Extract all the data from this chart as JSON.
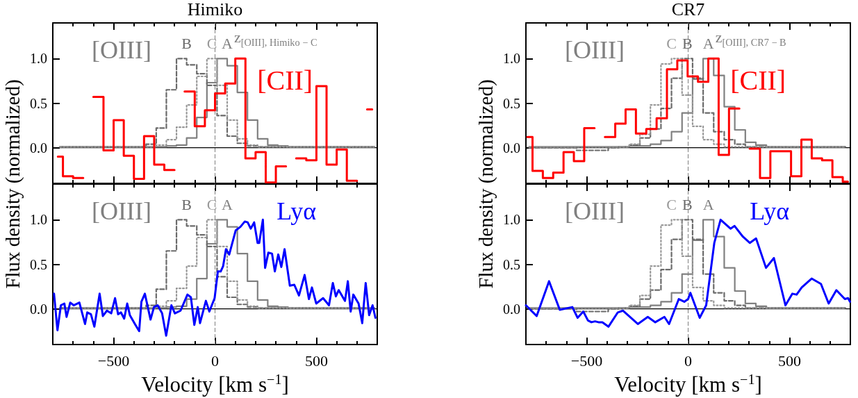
{
  "chart_data": [
    {
      "type": "step",
      "title": "Himiko",
      "ylabel": "Flux density (normalized)",
      "xlim": [
        -800,
        800
      ],
      "ylim": [
        -0.4,
        1.4
      ],
      "xticks": [
        {
          "value": -700,
          "label": null
        },
        {
          "value": -600,
          "label": null
        },
        -500,
        {
          "value": -400,
          "label": null
        },
        {
          "value": -300,
          "label": null
        },
        {
          "value": -200,
          "label": null
        },
        {
          "value": -100,
          "label": null
        },
        0,
        {
          "value": 100,
          "label": null
        },
        {
          "value": 200,
          "label": null
        },
        {
          "value": 300,
          "label": null
        },
        {
          "value": 400,
          "label": null
        },
        500,
        {
          "value": 600,
          "label": null
        },
        {
          "value": 700,
          "label": null
        }
      ],
      "yticks": [
        {
          "value": 0,
          "label": "0.0"
        },
        {
          "value": 0.5,
          "label": "0.5"
        },
        {
          "value": 1,
          "label": "1.0"
        }
      ],
      "tick_labels": "y",
      "grid": false,
      "legend": false,
      "marker": "none",
      "annotations": [
        "[OIII]",
        "z$_{[OIII], Himiko − C}$"
      ],
      "ref_lines": [
        {
          "axis": "x",
          "value": 0,
          "color": "#808080",
          "line_style": "dashed"
        },
        {
          "axis": "y",
          "value": 0,
          "color": "#000000",
          "line_style": "solid"
        }
      ],
      "series": [
        {
          "name": "A",
          "color": "#808080",
          "line_style": "solid",
          "x": [
            -765,
            -715,
            -665,
            -615,
            -565,
            -515,
            -465,
            -415,
            -365,
            -315,
            -265,
            -215,
            -165,
            -115,
            -65,
            -15,
            35,
            85,
            135,
            185,
            235,
            285,
            335,
            385,
            435,
            485,
            535,
            585,
            635,
            685,
            735,
            785
          ],
          "values": [
            0.01,
            0.01,
            0.01,
            0.01,
            0.01,
            0.01,
            0.01,
            0.01,
            0.01,
            0.01,
            0.01,
            0.02,
            0.03,
            0.11,
            0.34,
            0.73,
            1.0,
            0.92,
            0.62,
            0.31,
            0.1,
            0.03,
            0.02,
            0.01,
            0.01,
            0.01,
            0.01,
            0.01,
            0.01,
            0.01,
            0.01,
            0.01
          ]
        },
        {
          "name": "B",
          "color": "#6b6b6b",
          "line_style": "dashed",
          "x": [
            -765,
            -715,
            -665,
            -615,
            -565,
            -515,
            -465,
            -415,
            -365,
            -315,
            -265,
            -215,
            -165,
            -115,
            -65,
            -15,
            35,
            85,
            135,
            185,
            235,
            285,
            335,
            385,
            435,
            485,
            535,
            585,
            635,
            685,
            735,
            785
          ],
          "values": [
            0.01,
            0.01,
            0.01,
            0.01,
            0.01,
            0.01,
            0.01,
            0.01,
            0.01,
            0.04,
            0.22,
            0.65,
            1.0,
            0.93,
            0.83,
            0.7,
            0.36,
            0.13,
            0.05,
            0.02,
            0.01,
            0.01,
            0.01,
            0.01,
            0.01,
            0.01,
            0.01,
            0.01,
            0.01,
            0.01,
            0.01,
            0.01
          ]
        },
        {
          "name": "C",
          "color": "#999999",
          "line_style": "dotted",
          "x": [
            -765,
            -715,
            -665,
            -615,
            -565,
            -515,
            -465,
            -415,
            -365,
            -315,
            -265,
            -215,
            -165,
            -115,
            -65,
            -15,
            35,
            85,
            135,
            185,
            235,
            285,
            335,
            385,
            435,
            485,
            535,
            585,
            635,
            685,
            735,
            785
          ],
          "values": [
            0.01,
            0.01,
            0.01,
            0.01,
            0.01,
            0.01,
            0.01,
            0.01,
            0.01,
            0.01,
            0.03,
            0.09,
            0.23,
            0.48,
            0.8,
            1.0,
            0.7,
            0.31,
            0.1,
            0.03,
            0.01,
            0.01,
            0.01,
            0.01,
            0.01,
            0.01,
            0.01,
            0.01,
            0.01,
            0.01,
            0.01,
            0.01
          ]
        },
        {
          "name": "[CII]",
          "color": "#ff0000",
          "line_style": "solid",
          "x": [
            -775,
            -725,
            -675,
            -625,
            -575,
            -525,
            -475,
            -425,
            -375,
            -325,
            -275,
            -225,
            -175,
            -125,
            -75,
            -25,
            25,
            75,
            125,
            175,
            225,
            275,
            325,
            375,
            425,
            475,
            525,
            575,
            625,
            675,
            725,
            775
          ],
          "values": [
            -0.1,
            -0.32,
            -0.34,
            null,
            0.57,
            -0.03,
            0.31,
            -0.09,
            -0.35,
            0.13,
            -0.19,
            -0.25,
            null,
            0.63,
            0.24,
            0.42,
            0.61,
            0.72,
            1.0,
            -0.12,
            -0.05,
            -0.39,
            -0.21,
            null,
            -0.12,
            -0.14,
            0.69,
            -0.19,
            -0.02,
            -0.37,
            null,
            0.43
          ]
        }
      ]
    },
    {
      "type": "step",
      "title": "CR7",
      "ylabel": "Flux density (normalized)",
      "xlim": [
        -800,
        800
      ],
      "ylim": [
        -0.4,
        1.4
      ],
      "xticks": [
        {
          "value": -700,
          "label": null
        },
        {
          "value": -600,
          "label": null
        },
        -500,
        {
          "value": -400,
          "label": null
        },
        {
          "value": -300,
          "label": null
        },
        {
          "value": -200,
          "label": null
        },
        {
          "value": -100,
          "label": null
        },
        0,
        {
          "value": 100,
          "label": null
        },
        {
          "value": 200,
          "label": null
        },
        {
          "value": 300,
          "label": null
        },
        {
          "value": 400,
          "label": null
        },
        500,
        {
          "value": 600,
          "label": null
        },
        {
          "value": 700,
          "label": null
        }
      ],
      "yticks": [
        {
          "value": 0,
          "label": "0.0"
        },
        {
          "value": 0.5,
          "label": "0.5"
        },
        {
          "value": 1,
          "label": "1.0"
        }
      ],
      "tick_labels": "y",
      "grid": false,
      "legend": false,
      "marker": "none",
      "annotations": [
        "[OIII]",
        "z$_{[OIII], CR7 − B}$"
      ],
      "ref_lines": [
        {
          "axis": "x",
          "value": 0,
          "color": "#808080",
          "line_style": "dashed"
        },
        {
          "axis": "y",
          "value": 0,
          "color": "#000000",
          "line_style": "solid"
        }
      ],
      "series": [
        {
          "name": "A",
          "color": "#808080",
          "line_style": "solid",
          "x": [
            -784,
            -732,
            -680,
            -628,
            -576,
            -524,
            -472,
            -420,
            -368,
            -316,
            -264,
            -212,
            -160,
            -108,
            -56,
            -4,
            48,
            100,
            152,
            204,
            256,
            308,
            360,
            412,
            464,
            516,
            568,
            620,
            672,
            724,
            776
          ],
          "values": [
            0.01,
            0.01,
            0.01,
            0.01,
            0.01,
            0.01,
            0.01,
            0.01,
            0.01,
            0.01,
            0.02,
            0.02,
            0.04,
            0.08,
            0.18,
            0.39,
            0.77,
            1.0,
            0.81,
            0.46,
            0.2,
            0.06,
            0.03,
            0.01,
            0.01,
            0.01,
            0.01,
            0.01,
            0.01,
            0.01,
            0.01
          ]
        },
        {
          "name": "B",
          "color": "#6b6b6b",
          "line_style": "dashed",
          "x": [
            -784,
            -732,
            -680,
            -628,
            -576,
            -524,
            -472,
            -420,
            -368,
            -316,
            -264,
            -212,
            -160,
            -108,
            -56,
            -4,
            48,
            100,
            152,
            204,
            256,
            308,
            360,
            412,
            464,
            516,
            568,
            620,
            672,
            724,
            776
          ],
          "values": [
            0.0,
            0.0,
            0.0,
            0.0,
            0.0,
            -0.03,
            -0.03,
            -0.03,
            0.0,
            0.01,
            0.03,
            0.11,
            0.21,
            0.44,
            0.78,
            1.0,
            0.78,
            0.39,
            0.18,
            0.09,
            0.04,
            0.01,
            0.01,
            0.01,
            0.01,
            0.01,
            0.01,
            0.01,
            0.01,
            0.01,
            0.01
          ]
        },
        {
          "name": "C",
          "color": "#999999",
          "line_style": "dotted",
          "x": [
            -784,
            -732,
            -680,
            -628,
            -576,
            -524,
            -472,
            -420,
            -368,
            -316,
            -264,
            -212,
            -160,
            -108,
            -56,
            -4,
            48,
            100,
            152,
            204,
            256,
            308,
            360,
            412,
            464,
            516,
            568,
            620,
            672,
            724,
            776
          ],
          "values": [
            0.01,
            0.01,
            0.01,
            0.01,
            0.01,
            0.01,
            0.01,
            0.01,
            0.01,
            0.01,
            0.04,
            0.15,
            0.48,
            0.94,
            1.0,
            0.59,
            0.24,
            0.09,
            0.04,
            0.01,
            0.01,
            0.01,
            0.01,
            0.01,
            0.01,
            0.01,
            0.01,
            0.01,
            0.01,
            0.01,
            0.01
          ]
        },
        {
          "name": "[CII]",
          "color": "#ff0000",
          "line_style": "solid",
          "x": [
            -793,
            -742,
            -691,
            -640,
            -589,
            -538,
            -487,
            -436,
            -385,
            -334,
            -283,
            -232,
            -181,
            -130,
            -79,
            -28,
            23,
            74,
            125,
            176,
            227,
            278,
            329,
            380,
            431,
            482,
            533,
            584,
            635,
            686,
            737,
            788
          ],
          "values": [
            0.12,
            -0.26,
            -0.34,
            -0.28,
            -0.05,
            -0.15,
            0.22,
            null,
            0.12,
            0.27,
            0.43,
            0.16,
            0.21,
            0.33,
            0.88,
            0.98,
            0.8,
            0.74,
            1.0,
            -0.08,
            0.44,
            null,
            -0.01,
            -0.34,
            -0.04,
            -0.04,
            -0.32,
            0.09,
            -0.12,
            -0.14,
            -0.33,
            -0.38
          ]
        }
      ]
    },
    {
      "type": "step",
      "xlabel": "Velocity [km s$^{−1}$]",
      "xlim": [
        -800,
        800
      ],
      "ylim": [
        -0.4,
        1.4
      ],
      "xticks": [
        {
          "value": -700,
          "label": null
        },
        {
          "value": -600,
          "label": null
        },
        {
          "value": -500,
          "label": "−500"
        },
        {
          "value": -400,
          "label": null
        },
        {
          "value": -300,
          "label": null
        },
        {
          "value": -200,
          "label": null
        },
        {
          "value": -100,
          "label": null
        },
        0,
        {
          "value": 100,
          "label": null
        },
        {
          "value": 200,
          "label": null
        },
        {
          "value": 300,
          "label": null
        },
        {
          "value": 400,
          "label": null
        },
        500,
        {
          "value": 600,
          "label": null
        },
        {
          "value": 700,
          "label": null
        }
      ],
      "yticks": [
        {
          "value": 0,
          "label": "0.0"
        },
        {
          "value": 0.5,
          "label": "0.5"
        },
        {
          "value": 1,
          "label": "1.0"
        }
      ],
      "grid": false,
      "legend": false,
      "marker": "none",
      "annotations": [
        "[OIII]"
      ],
      "ref_lines": [
        {
          "axis": "x",
          "value": 0,
          "color": "#808080",
          "line_style": "dashed"
        },
        {
          "axis": "y",
          "value": 0,
          "color": "#000000",
          "line_style": "solid"
        }
      ],
      "series": [
        {
          "name": "A",
          "color": "#808080",
          "line_style": "solid",
          "x": [
            -765,
            -715,
            -665,
            -615,
            -565,
            -515,
            -465,
            -415,
            -365,
            -315,
            -265,
            -215,
            -165,
            -115,
            -65,
            -15,
            35,
            85,
            135,
            185,
            235,
            285,
            335,
            385,
            435,
            485,
            535,
            585,
            635,
            685,
            735,
            785
          ],
          "values": [
            0.01,
            0.01,
            0.01,
            0.01,
            0.01,
            0.01,
            0.01,
            0.01,
            0.01,
            0.01,
            0.01,
            0.02,
            0.03,
            0.11,
            0.34,
            0.73,
            1.0,
            0.92,
            0.62,
            0.31,
            0.1,
            0.03,
            0.02,
            0.01,
            0.01,
            0.01,
            0.01,
            0.01,
            0.01,
            0.01,
            0.01,
            0.01
          ]
        },
        {
          "name": "B",
          "color": "#6b6b6b",
          "line_style": "dashed",
          "x": [
            -765,
            -715,
            -665,
            -615,
            -565,
            -515,
            -465,
            -415,
            -365,
            -315,
            -265,
            -215,
            -165,
            -115,
            -65,
            -15,
            35,
            85,
            135,
            185,
            235,
            285,
            335,
            385,
            435,
            485,
            535,
            585,
            635,
            685,
            735,
            785
          ],
          "values": [
            0.01,
            0.01,
            0.01,
            0.01,
            0.01,
            0.01,
            0.01,
            0.01,
            0.01,
            0.04,
            0.22,
            0.65,
            1.0,
            0.93,
            0.83,
            0.7,
            0.36,
            0.13,
            0.05,
            0.02,
            0.01,
            0.01,
            0.01,
            0.01,
            0.01,
            0.01,
            0.01,
            0.01,
            0.01,
            0.01,
            0.01,
            0.01
          ]
        },
        {
          "name": "C",
          "color": "#999999",
          "line_style": "dotted",
          "x": [
            -765,
            -715,
            -665,
            -615,
            -565,
            -515,
            -465,
            -415,
            -365,
            -315,
            -265,
            -215,
            -165,
            -115,
            -65,
            -15,
            35,
            85,
            135,
            185,
            235,
            285,
            335,
            385,
            435,
            485,
            535,
            585,
            635,
            685,
            735,
            785
          ],
          "values": [
            0.01,
            0.01,
            0.01,
            0.01,
            0.01,
            0.01,
            0.01,
            0.01,
            0.01,
            0.01,
            0.03,
            0.09,
            0.23,
            0.48,
            0.8,
            1.0,
            0.7,
            0.31,
            0.1,
            0.03,
            0.01,
            0.01,
            0.01,
            0.01,
            0.01,
            0.01,
            0.01,
            0.01,
            0.01,
            0.01,
            0.01,
            0.01
          ]
        },
        {
          "name": "Lyα",
          "type": "line",
          "color": "#0000ff",
          "line_style": "solid",
          "x": [
            -794,
            -777,
            -760,
            -743,
            -732,
            -714,
            -697,
            -669,
            -641,
            -630,
            -612,
            -595,
            -569,
            -553,
            -533,
            -512,
            -493,
            -478,
            -464,
            -448,
            -433,
            -420,
            -395,
            -374,
            -363,
            -346,
            -318,
            -301,
            -283,
            -261,
            -241,
            -215,
            -198,
            -170,
            -136,
            -119,
            -102,
            -85,
            -74,
            -45,
            -28,
            -2,
            14,
            28,
            40,
            54,
            70,
            102,
            125,
            147,
            161,
            176,
            193,
            210,
            218,
            236,
            247,
            263,
            281,
            295,
            312,
            327,
            343,
            369,
            391,
            414,
            442,
            463,
            478,
            499,
            533,
            562,
            581,
            596,
            610,
            641,
            655,
            669,
            682,
            708,
            726,
            743,
            760,
            777,
            791
          ],
          "values": [
            0.17,
            -0.24,
            0.04,
            0.06,
            -0.09,
            0.07,
            0.04,
            0.07,
            -0.17,
            -0.04,
            -0.06,
            -0.2,
            0.17,
            -0.08,
            -0.02,
            -0.05,
            0.12,
            -0.06,
            -0.04,
            -0.11,
            0.06,
            -0.07,
            -0.17,
            -0.25,
            0.08,
            0.17,
            -0.12,
            0.02,
            0.04,
            -0.05,
            -0.3,
            0.04,
            -0.05,
            -0.02,
            0.16,
            0.13,
            -0.18,
            0.02,
            -0.16,
            0.09,
            -0.03,
            0.12,
            0.42,
            0.42,
            0.48,
            0.67,
            0.61,
            0.88,
            0.92,
            0.98,
            0.97,
            0.9,
            0.97,
            0.74,
            0.74,
            1.0,
            0.46,
            0.63,
            0.62,
            0.42,
            0.61,
            0.47,
            0.67,
            0.26,
            0.27,
            0.15,
            0.38,
            0.11,
            0.24,
            0.06,
            0.12,
            0.04,
            0.29,
            0.14,
            0.21,
            0.09,
            0.31,
            -0.03,
            0.16,
            0.06,
            -0.16,
            0.29,
            -0.07,
            0.04,
            -0.1
          ]
        }
      ]
    },
    {
      "type": "step",
      "xlabel": "Velocity [km s$^{−1}$]",
      "xlim": [
        -800,
        800
      ],
      "ylim": [
        -0.4,
        1.4
      ],
      "xticks": [
        {
          "value": -700,
          "label": null
        },
        {
          "value": -600,
          "label": null
        },
        {
          "value": -500,
          "label": "−500"
        },
        {
          "value": -400,
          "label": null
        },
        {
          "value": -300,
          "label": null
        },
        {
          "value": -200,
          "label": null
        },
        {
          "value": -100,
          "label": null
        },
        0,
        {
          "value": 100,
          "label": null
        },
        {
          "value": 200,
          "label": null
        },
        {
          "value": 300,
          "label": null
        },
        {
          "value": 400,
          "label": null
        },
        500,
        {
          "value": 600,
          "label": null
        },
        {
          "value": 700,
          "label": null
        }
      ],
      "yticks": [
        {
          "value": 0,
          "label": "0.0"
        },
        {
          "value": 0.5,
          "label": "0.5"
        },
        {
          "value": 1,
          "label": "1.0"
        }
      ],
      "grid": false,
      "legend": false,
      "marker": "none",
      "annotations": [
        "[OIII]"
      ],
      "ref_lines": [
        {
          "axis": "x",
          "value": 0,
          "color": "#808080",
          "line_style": "dashed"
        },
        {
          "axis": "y",
          "value": 0,
          "color": "#000000",
          "line_style": "solid"
        }
      ],
      "series": [
        {
          "name": "A",
          "color": "#808080",
          "line_style": "solid",
          "x": [
            -784,
            -732,
            -680,
            -628,
            -576,
            -524,
            -472,
            -420,
            -368,
            -316,
            -264,
            -212,
            -160,
            -108,
            -56,
            -4,
            48,
            100,
            152,
            204,
            256,
            308,
            360,
            412,
            464,
            516,
            568,
            620,
            672,
            724,
            776
          ],
          "values": [
            0.01,
            0.01,
            0.01,
            0.01,
            0.01,
            0.01,
            0.01,
            0.01,
            0.01,
            0.01,
            0.02,
            0.02,
            0.04,
            0.08,
            0.18,
            0.39,
            0.77,
            1.0,
            0.81,
            0.46,
            0.2,
            0.06,
            0.03,
            0.01,
            0.01,
            0.01,
            0.01,
            0.01,
            0.01,
            0.01,
            0.01
          ]
        },
        {
          "name": "B",
          "color": "#6b6b6b",
          "line_style": "dashed",
          "x": [
            -784,
            -732,
            -680,
            -628,
            -576,
            -524,
            -472,
            -420,
            -368,
            -316,
            -264,
            -212,
            -160,
            -108,
            -56,
            -4,
            48,
            100,
            152,
            204,
            256,
            308,
            360,
            412,
            464,
            516,
            568,
            620,
            672,
            724,
            776
          ],
          "values": [
            0.0,
            0.0,
            0.0,
            0.0,
            0.0,
            -0.03,
            -0.03,
            -0.03,
            0.0,
            0.01,
            0.03,
            0.11,
            0.21,
            0.44,
            0.78,
            1.0,
            0.78,
            0.39,
            0.18,
            0.09,
            0.04,
            0.01,
            0.01,
            0.01,
            0.01,
            0.01,
            0.01,
            0.01,
            0.01,
            0.01,
            0.01
          ]
        },
        {
          "name": "C",
          "color": "#999999",
          "line_style": "dotted",
          "x": [
            -784,
            -732,
            -680,
            -628,
            -576,
            -524,
            -472,
            -420,
            -368,
            -316,
            -264,
            -212,
            -160,
            -108,
            -56,
            -4,
            48,
            100,
            152,
            204,
            256,
            308,
            360,
            412,
            464,
            516,
            568,
            620,
            672,
            724,
            776
          ],
          "values": [
            0.01,
            0.01,
            0.01,
            0.01,
            0.01,
            0.01,
            0.01,
            0.01,
            0.01,
            0.01,
            0.04,
            0.15,
            0.48,
            0.94,
            1.0,
            0.59,
            0.24,
            0.09,
            0.04,
            0.01,
            0.01,
            0.01,
            0.01,
            0.01,
            0.01,
            0.01,
            0.01,
            0.01,
            0.01,
            0.01,
            0.01
          ]
        },
        {
          "name": "Lyα",
          "type": "line",
          "color": "#0000ff",
          "line_style": "solid",
          "x": [
            -800,
            -747,
            -686,
            -633,
            -571,
            -545,
            -517,
            -494,
            -477,
            -459,
            -442,
            -423,
            -393,
            -347,
            -322,
            -248,
            -199,
            -162,
            -117,
            -94,
            -46,
            -19,
            0,
            11,
            57,
            89,
            129,
            160,
            209,
            229,
            270,
            304,
            335,
            384,
            423,
            480,
            514,
            535,
            560,
            609,
            655,
            693,
            731,
            773,
            789,
            798
          ],
          "values": [
            0.04,
            -0.08,
            0.31,
            -0.01,
            0.02,
            -0.1,
            -0.03,
            -0.13,
            -0.15,
            -0.14,
            -0.15,
            -0.15,
            -0.2,
            -0.04,
            -0.02,
            -0.17,
            -0.09,
            -0.15,
            -0.09,
            -0.17,
            0.11,
            0.08,
            0.11,
            0.18,
            -0.1,
            0.04,
            0.74,
            1.0,
            0.9,
            0.93,
            0.81,
            0.74,
            0.79,
            0.46,
            0.57,
            0.04,
            0.17,
            0.16,
            0.24,
            0.34,
            0.28,
            0.06,
            0.21,
            0.11,
            0.12,
            0.08
          ]
        }
      ]
    }
  ]
}
